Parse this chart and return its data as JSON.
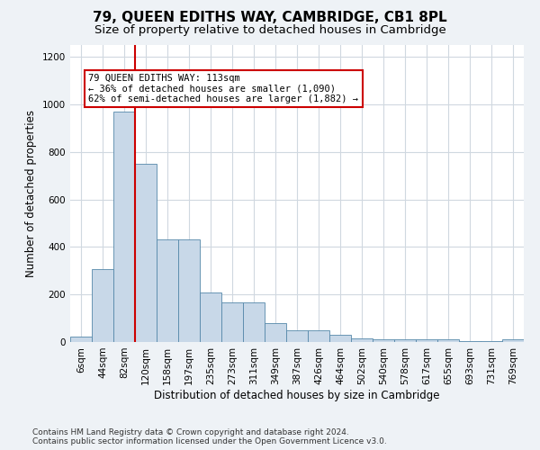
{
  "title": "79, QUEEN EDITHS WAY, CAMBRIDGE, CB1 8PL",
  "subtitle": "Size of property relative to detached houses in Cambridge",
  "xlabel": "Distribution of detached houses by size in Cambridge",
  "ylabel": "Number of detached properties",
  "bar_labels": [
    "6sqm",
    "44sqm",
    "82sqm",
    "120sqm",
    "158sqm",
    "197sqm",
    "235sqm",
    "273sqm",
    "311sqm",
    "349sqm",
    "387sqm",
    "426sqm",
    "464sqm",
    "502sqm",
    "540sqm",
    "578sqm",
    "617sqm",
    "655sqm",
    "693sqm",
    "731sqm",
    "769sqm"
  ],
  "bar_values": [
    22,
    305,
    970,
    750,
    430,
    430,
    210,
    165,
    165,
    80,
    50,
    50,
    30,
    15,
    10,
    10,
    10,
    10,
    5,
    5,
    10
  ],
  "bar_color": "#c8d8e8",
  "bar_edge_color": "#5588aa",
  "vline_index": 2.5,
  "vline_color": "#cc0000",
  "annotation_text": "79 QUEEN EDITHS WAY: 113sqm\n← 36% of detached houses are smaller (1,090)\n62% of semi-detached houses are larger (1,882) →",
  "annotation_box_color": "#ffffff",
  "annotation_box_edge_color": "#cc0000",
  "ylim": [
    0,
    1250
  ],
  "yticks": [
    0,
    200,
    400,
    600,
    800,
    1000,
    1200
  ],
  "background_color": "#eef2f6",
  "plot_background": "#ffffff",
  "grid_color": "#d0d8e0",
  "footer": "Contains HM Land Registry data © Crown copyright and database right 2024.\nContains public sector information licensed under the Open Government Licence v3.0.",
  "title_fontsize": 11,
  "subtitle_fontsize": 9.5,
  "xlabel_fontsize": 8.5,
  "ylabel_fontsize": 8.5,
  "tick_fontsize": 7.5,
  "footer_fontsize": 6.5,
  "annot_fontsize": 7.5
}
